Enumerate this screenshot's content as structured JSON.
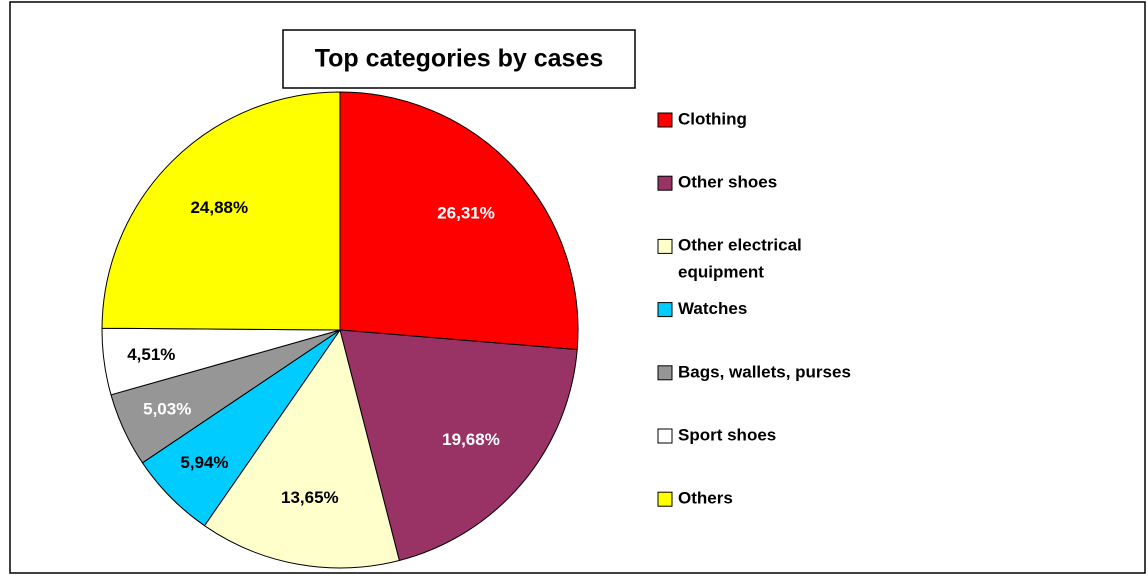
{
  "chart_data": {
    "type": "pie",
    "title": "Top categories by cases",
    "categories": [
      "Clothing",
      "Other shoes",
      "Other electrical equipment",
      "Watches",
      "Bags, wallets, purses",
      "Sport shoes",
      "Others"
    ],
    "values": [
      26.31,
      19.68,
      13.65,
      5.94,
      5.03,
      4.51,
      24.88
    ],
    "value_labels": [
      "26,31%",
      "19,68%",
      "13,65%",
      "5,94%",
      "5,03%",
      "4,51%",
      "24,88%"
    ],
    "colors": [
      "#ff0000",
      "#993366",
      "#ffffcc",
      "#00ccff",
      "#969696",
      "#ffffff",
      "#ffff00"
    ],
    "label_colors": [
      "#ffffff",
      "#ffffff",
      "#000000",
      "#000000",
      "#ffffff",
      "#000000",
      "#000000"
    ],
    "legend": "right"
  }
}
